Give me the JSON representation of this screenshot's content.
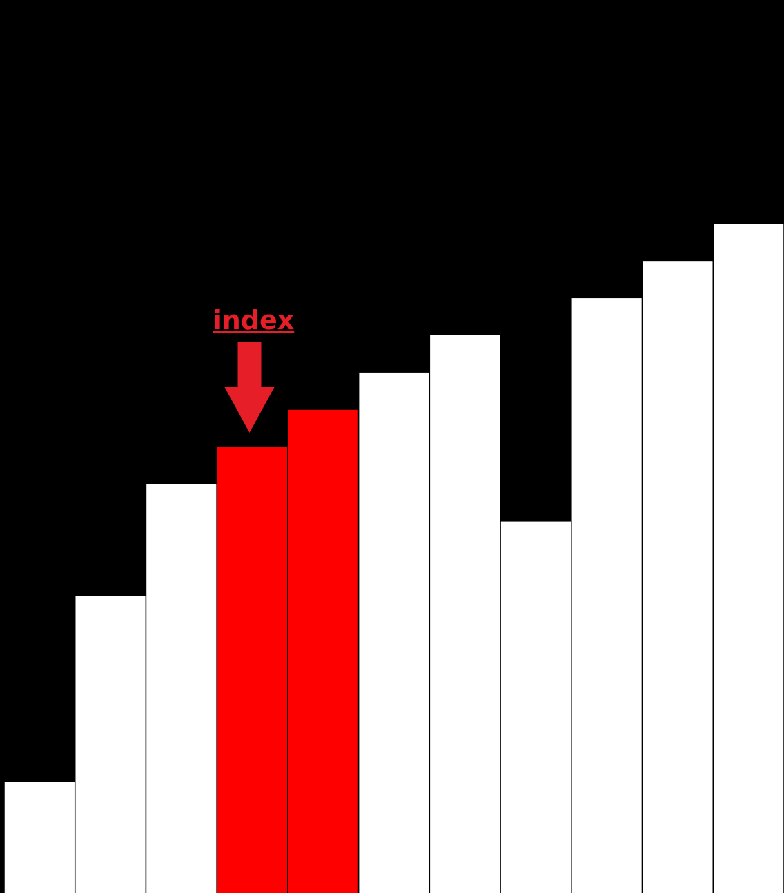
{
  "colors": {
    "background": "#000000",
    "bar_default": "#ffffff",
    "bar_highlight": "#ff0000",
    "bar_border": "#000000",
    "pointer": "#e61e28"
  },
  "chart_data": {
    "type": "bar",
    "values": [
      6,
      16,
      22,
      24,
      26,
      28,
      30,
      20,
      32,
      34,
      36
    ],
    "highlighted_indices": [
      3,
      4
    ],
    "pointer_target_index": 3,
    "ylim": [
      0,
      48
    ],
    "title": "",
    "xlabel": "",
    "ylabel": ""
  },
  "pointer": {
    "label": "index",
    "icon": "down-arrow-icon"
  }
}
